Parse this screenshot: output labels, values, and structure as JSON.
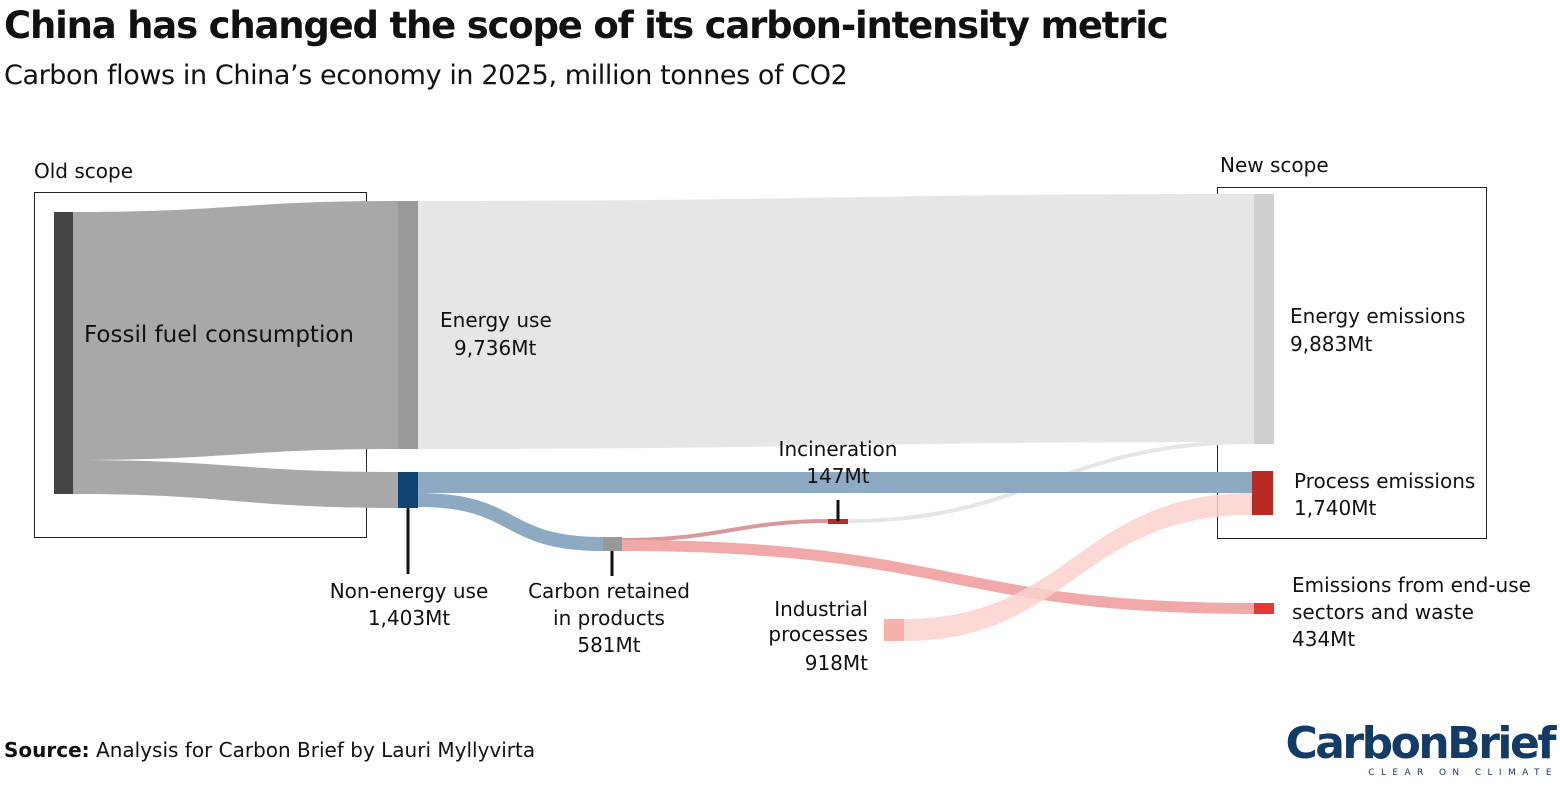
{
  "title": "China has changed the scope of its carbon-intensity metric",
  "subtitle": "Carbon flows in China’s economy in 2025, million tonnes of CO2",
  "scopes": {
    "old": "Old scope",
    "new": "New scope"
  },
  "nodes": {
    "fossil": {
      "label": "Fossil fuel consumption"
    },
    "energy_use": {
      "label": "Energy use",
      "value": "9,736Mt"
    },
    "non_energy": {
      "label": "Non-energy use",
      "value": "1,403Mt"
    },
    "retained": {
      "label_line1": "Carbon retained",
      "label_line2": "in products",
      "value": "581Mt"
    },
    "incineration": {
      "label": "Incineration",
      "value": "147Mt"
    },
    "industrial": {
      "label_line1": "Industrial",
      "label_line2": "processes",
      "value": "918Mt"
    },
    "energy_emissions": {
      "label": "Energy emissions",
      "value": "9,883Mt"
    },
    "process_emissions": {
      "label": "Process emissions",
      "value": "1,740Mt"
    },
    "end_use": {
      "label_line1": "Emissions from end-use",
      "label_line2": "sectors and waste",
      "value": "434Mt"
    }
  },
  "flows": [
    {
      "from": "Fossil fuel consumption",
      "to": "Energy use",
      "value": 9736
    },
    {
      "from": "Fossil fuel consumption",
      "to": "Non-energy use",
      "value": 1403
    },
    {
      "from": "Energy use",
      "to": "Energy emissions",
      "value": 9736
    },
    {
      "from": "Non-energy use",
      "to": "Process emissions",
      "value": 822
    },
    {
      "from": "Non-energy use",
      "to": "Carbon retained in products",
      "value": 581
    },
    {
      "from": "Carbon retained in products",
      "to": "Incineration",
      "value": 147
    },
    {
      "from": "Carbon retained in products",
      "to": "Emissions from end-use sectors and waste",
      "value": 434
    },
    {
      "from": "Incineration",
      "to": "Energy emissions",
      "value": 147
    },
    {
      "from": "Industrial processes",
      "to": "Process emissions",
      "value": 918
    }
  ],
  "source": {
    "label": "Source:",
    "text": " Analysis for Carbon Brief by Lauri Myllyvirta"
  },
  "logo": {
    "name": "CarbonBrief",
    "tagline": "CLEAR ON CLIMATE"
  },
  "colors": {
    "fossil_node": "#444444",
    "fossil_flow": "#a8a8a8",
    "energy_node": "#999999",
    "energy_flow": "#e6e6e6",
    "energy_emissions_node": "#cfcfcf",
    "non_energy_node": "#0f4470",
    "non_energy_flow": "#8eaac2",
    "retained_node": "#999999",
    "retained_flow": "#f0a8a8",
    "incineration_node": "#b82a24",
    "process_node": "#b82a24",
    "end_use_node": "#e03b32",
    "industrial_node": "#f7b0aa",
    "industrial_flow": "#fbd2ce",
    "logo": "#143a66"
  }
}
